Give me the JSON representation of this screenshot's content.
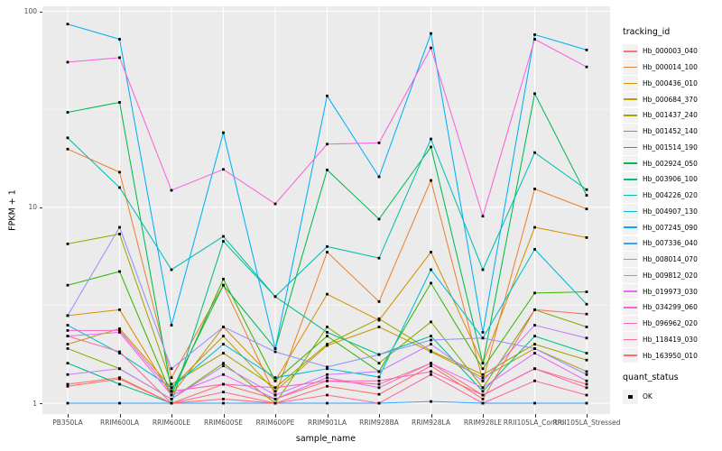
{
  "chart": {
    "ylabel": "FPKM + 1",
    "xlabel": "sample_name",
    "legend_title": "tracking_id",
    "quant_legend_title": "quant_status",
    "quant_ok_label": "OK",
    "panel_bg": "#EBEBEB",
    "grid_color": "#FFFFFF",
    "marker_color": "#000000"
  },
  "chart_data": {
    "type": "line",
    "x_label": "sample_name",
    "y_label": "FPKM + 1",
    "y_scale": "log10",
    "ylim": [
      1,
      100
    ],
    "yticks": [
      1,
      10,
      100
    ],
    "yticks_minor": [
      3.162,
      31.62
    ],
    "grid": true,
    "legend_position": "right",
    "marker": "black-square (quant_status OK)",
    "x": [
      "PB350LA",
      "RRIM600LA",
      "RRIM600LE",
      "RRIM600SE",
      "RRIM600PE",
      "RRIM901LA",
      "RRIM928BA",
      "RRIM928LA",
      "RRIM928LE",
      "RRII105LA_Control",
      "RRII105LA_Stressed"
    ],
    "series": [
      {
        "name": "Hb_000003_040",
        "color": "#F8766D",
        "values": [
          1.25,
          1.35,
          1.0,
          1.25,
          1.05,
          1.3,
          1.25,
          1.6,
          1.1,
          1.5,
          1.25
        ]
      },
      {
        "name": "Hb_000014_100",
        "color": "#EA8331",
        "values": [
          19.8,
          15.1,
          1.35,
          4.0,
          1.1,
          5.9,
          3.3,
          13.7,
          1.3,
          12.4,
          9.8
        ]
      },
      {
        "name": "Hb_000436_010",
        "color": "#D89000",
        "values": [
          2.8,
          3.0,
          1.1,
          2.45,
          1.3,
          3.6,
          2.65,
          5.9,
          1.6,
          7.9,
          7.0
        ]
      },
      {
        "name": "Hb_000684_370",
        "color": "#C09B00",
        "values": [
          2.0,
          2.4,
          1.2,
          2.2,
          1.15,
          1.97,
          2.45,
          1.83,
          1.35,
          1.9,
          1.45
        ]
      },
      {
        "name": "Hb_001437_240",
        "color": "#A3A500",
        "values": [
          6.5,
          7.3,
          1.25,
          1.8,
          1.2,
          2.0,
          2.7,
          1.85,
          1.4,
          2.0,
          1.66
        ]
      },
      {
        "name": "Hb_001452_140",
        "color": "#7CAE00",
        "values": [
          1.9,
          1.5,
          1.05,
          1.6,
          1.0,
          2.45,
          1.6,
          2.6,
          1.2,
          3.0,
          2.45
        ]
      },
      {
        "name": "Hb_001514_190",
        "color": "#39B600",
        "values": [
          4.0,
          4.7,
          1.1,
          4.3,
          1.3,
          2.2,
          1.45,
          4.1,
          1.5,
          3.65,
          3.7
        ]
      },
      {
        "name": "Hb_002924_050",
        "color": "#00BB4E",
        "values": [
          30.5,
          34.3,
          1.15,
          4.0,
          1.9,
          15.5,
          8.7,
          20.3,
          1.6,
          38.0,
          11.5
        ]
      },
      {
        "name": "Hb_003906_100",
        "color": "#00C087",
        "values": [
          1.6,
          1.25,
          1.0,
          6.7,
          3.5,
          2.3,
          1.77,
          2.2,
          1.15,
          2.2,
          1.8
        ]
      },
      {
        "name": "Hb_004226_020",
        "color": "#00C0B2",
        "values": [
          22.6,
          12.6,
          4.8,
          7.1,
          3.5,
          6.3,
          5.5,
          22.3,
          4.8,
          19.0,
          12.3
        ]
      },
      {
        "name": "Hb_004907_130",
        "color": "#00BCD8",
        "values": [
          2.5,
          1.8,
          1.2,
          2.0,
          1.35,
          1.5,
          1.36,
          4.8,
          2.15,
          6.1,
          3.2
        ]
      },
      {
        "name": "Hb_007245_090",
        "color": "#00B0F6",
        "values": [
          86.0,
          72.0,
          2.5,
          24.0,
          1.9,
          37.0,
          14.3,
          77.0,
          2.3,
          76.0,
          63.5
        ]
      },
      {
        "name": "Hb_007336_040",
        "color": "#35A2FF",
        "values": [
          1.0,
          1.0,
          1.0,
          1.0,
          1.0,
          1.0,
          1.0,
          1.02,
          1.0,
          1.0,
          1.0
        ]
      },
      {
        "name": "Hb_008014_070",
        "color": "#9590FF",
        "values": [
          2.8,
          7.9,
          1.5,
          2.45,
          1.83,
          1.53,
          1.77,
          2.1,
          2.15,
          1.9,
          1.4
        ]
      },
      {
        "name": "Hb_009812_020",
        "color": "#C77CFF",
        "values": [
          1.4,
          1.5,
          1.05,
          1.55,
          1.1,
          1.4,
          1.45,
          2.0,
          1.3,
          2.5,
          2.15
        ]
      },
      {
        "name": "Hb_019973_030",
        "color": "#E76BF3",
        "values": [
          2.2,
          2.3,
          1.1,
          1.4,
          1.05,
          1.35,
          1.2,
          1.6,
          1.2,
          1.8,
          1.3
        ]
      },
      {
        "name": "Hb_034299_060",
        "color": "#FA62DB",
        "values": [
          55.0,
          58.0,
          12.2,
          15.6,
          10.4,
          21.0,
          21.3,
          65.0,
          9.0,
          72.0,
          52.0
        ]
      },
      {
        "name": "Hb_096962_020",
        "color": "#FF62BC",
        "values": [
          2.35,
          2.35,
          1.15,
          1.25,
          1.2,
          1.3,
          1.3,
          1.45,
          1.1,
          1.5,
          1.2
        ]
      },
      {
        "name": "Hb_118419_030",
        "color": "#FF6A98",
        "values": [
          2.2,
          1.83,
          1.0,
          1.14,
          1.0,
          1.1,
          1.0,
          1.4,
          1.0,
          1.3,
          1.1
        ]
      },
      {
        "name": "Hb_163950_010",
        "color": "#FF6C67",
        "values": [
          1.22,
          1.33,
          1.0,
          1.05,
          1.0,
          1.22,
          1.11,
          1.55,
          1.05,
          3.0,
          2.85
        ]
      }
    ]
  }
}
